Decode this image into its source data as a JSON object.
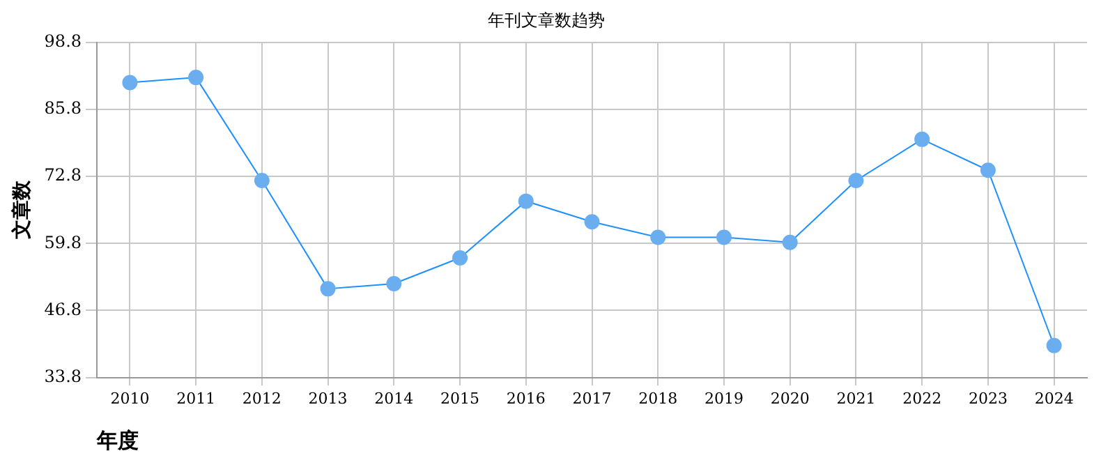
{
  "chart_data": {
    "type": "line",
    "title": "年刊文章数趋势",
    "xlabel": "年度",
    "ylabel": "文章数",
    "categories": [
      "2010",
      "2011",
      "2012",
      "2013",
      "2014",
      "2015",
      "2016",
      "2017",
      "2018",
      "2019",
      "2020",
      "2021",
      "2022",
      "2023",
      "2024"
    ],
    "series": [
      {
        "color": "#1e90ff",
        "values": [
          91,
          92,
          72,
          51,
          52,
          57,
          68,
          64,
          61,
          61,
          60,
          72,
          80,
          74,
          40
        ]
      }
    ],
    "ylim": [
      33.8,
      98.8
    ],
    "yticks": [
      33.8,
      46.8,
      59.8,
      72.8,
      85.8,
      98.8
    ],
    "grid": true,
    "marker": "circle",
    "line_style": "solid",
    "legend": false
  }
}
